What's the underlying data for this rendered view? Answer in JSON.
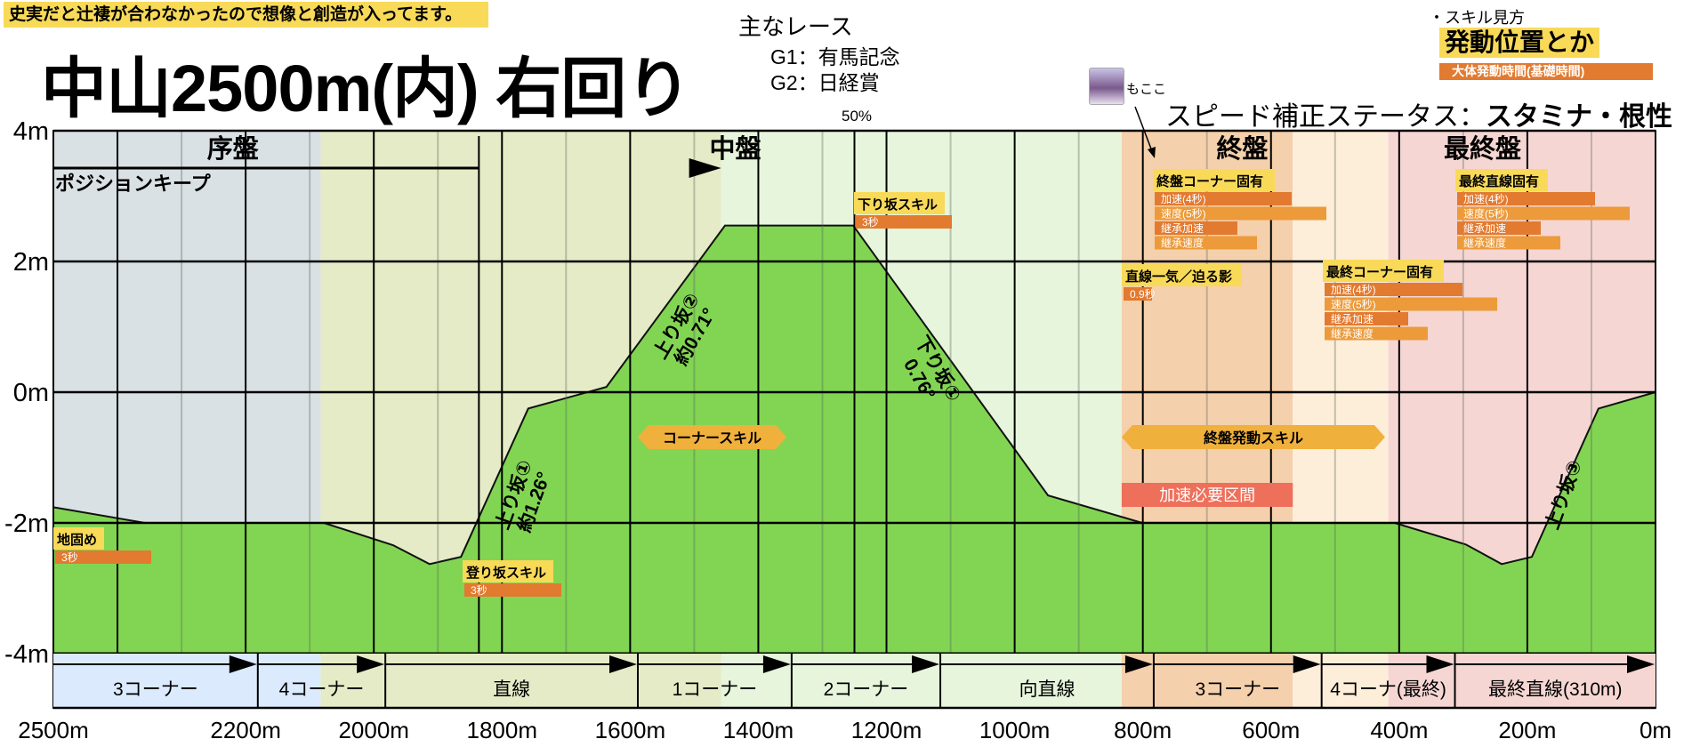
{
  "header": {
    "note": "史実だと辻褄が合わなかったので想像と創造が入ってます。",
    "title": "中山2500m(内) 右回り",
    "races_heading": "主なレース",
    "races": [
      "G1：有馬記念",
      "G2：日経賞"
    ],
    "midpoint_label": "50%"
  },
  "legend": {
    "heading": "・スキル見方",
    "position_label": "発動位置とか",
    "time_label": "大体発動時間(基礎時間)"
  },
  "author": {
    "name": "もここ",
    "avatar_icon": "character-avatar-icon"
  },
  "speed_status": {
    "prefix": "スピード補正ステータス：",
    "value": "スタミナ・根性"
  },
  "phases": [
    {
      "label": "序盤",
      "from": 2500,
      "to": 2083,
      "color": "#dae1e4"
    },
    {
      "label": "",
      "from": 2083,
      "to": 1458,
      "color": "#e4ebc6"
    },
    {
      "label": "中盤",
      "from": 1458,
      "to": 833,
      "color": "#e6f5dc"
    },
    {
      "label": "終盤",
      "from": 833,
      "to": 566,
      "color": "#f5d0ac"
    },
    {
      "label": "",
      "from": 566,
      "to": 417,
      "color": "#fdeed9"
    },
    {
      "label": "最終盤",
      "from": 417,
      "to": 0,
      "color": "#f5d6d3"
    }
  ],
  "position_keep": "ポジションキープ",
  "sections": [
    {
      "label": "3コーナー",
      "from": 2500,
      "to": 2181
    },
    {
      "label": "4コーナー",
      "from": 2181,
      "to": 1982
    },
    {
      "label": "直線",
      "from": 1982,
      "to": 1588
    },
    {
      "label": "1コーナー",
      "from": 1588,
      "to": 1348
    },
    {
      "label": "2コーナー",
      "from": 1348,
      "to": 1116
    },
    {
      "label": "向直線",
      "from": 1116,
      "to": 783
    },
    {
      "label": "3コーナー",
      "from": 783,
      "to": 521
    },
    {
      "label": "4コーナ(最終)",
      "from": 521,
      "to": 313
    },
    {
      "label": "最終直線(310m)",
      "from": 313,
      "to": 0
    }
  ],
  "slopes": [
    {
      "label": "上り坂①",
      "sub": "約1.26°"
    },
    {
      "label": "上り坂②",
      "sub": "約0.71°"
    },
    {
      "label": "下り坂①",
      "sub": "0.76°"
    },
    {
      "label": "上り坂③",
      "sub": ""
    }
  ],
  "skills": [
    {
      "label": "地固め",
      "bars": [
        "3秒"
      ]
    },
    {
      "label": "登り坂スキル",
      "bars": [
        "3秒"
      ]
    },
    {
      "label": "下り坂スキル",
      "bars": [
        "3秒"
      ]
    },
    {
      "label": "直線一気／迫る影",
      "bars": [
        "0.9秒"
      ]
    },
    {
      "label": "終盤コーナー固有",
      "bars": [
        "加速(4秒)",
        "速度(5秒)",
        "継承加速",
        "継承速度"
      ]
    },
    {
      "label": "最終コーナー固有",
      "bars": [
        "加速(4秒)",
        "速度(5秒)",
        "継承加速",
        "継承速度"
      ]
    },
    {
      "label": "最終直線固有",
      "bars": [
        "加速(4秒)",
        "速度(5秒)",
        "継承加速",
        "継承速度"
      ]
    }
  ],
  "ranges": [
    {
      "label": "コーナースキル",
      "from": 1588,
      "to": 1356,
      "color": "#f0b03c"
    },
    {
      "label": "終盤発動スキル",
      "from": 833,
      "to": 422,
      "color": "#f0b03c"
    },
    {
      "label": "加速必要区間",
      "from": 833,
      "to": 566,
      "color": "#ee6f5a"
    }
  ],
  "colors": {
    "ground": "#82d553",
    "label_yellow": "#f8da58",
    "bar_dark": "#e27a30",
    "bar_light": "#ec9a3a"
  },
  "chart_data": {
    "type": "area",
    "title": "中山2500m(内) 右回り",
    "xlabel": "",
    "ylabel": "",
    "xlim": [
      2500,
      0
    ],
    "ylim": [
      -4,
      4
    ],
    "grid": true,
    "x_ticks": [
      "2500m",
      "2200m",
      "2000m",
      "1800m",
      "1600m",
      "1400m",
      "1200m",
      "1000m",
      "800m",
      "600m",
      "400m",
      "200m",
      "0m"
    ],
    "x_tick_values": [
      2500,
      2200,
      2000,
      1800,
      1600,
      1400,
      1200,
      1000,
      800,
      600,
      400,
      200,
      0
    ],
    "y_ticks": [
      "4m",
      "2m",
      "0m",
      "-2m",
      "-4m"
    ],
    "y_tick_values": [
      4,
      2,
      0,
      -2,
      -4
    ],
    "elevation": {
      "x": [
        2500,
        2357,
        2078,
        1970,
        1913,
        1864,
        1759,
        1637,
        1452,
        1252,
        948,
        801,
        407,
        296,
        240,
        193,
        89,
        0
      ],
      "y": [
        -1.76,
        -2.0,
        -2.0,
        -2.34,
        -2.63,
        -2.52,
        -0.25,
        0.08,
        2.55,
        2.55,
        -1.58,
        -2.0,
        -2.0,
        -2.33,
        -2.63,
        -2.52,
        -0.25,
        0
      ]
    }
  }
}
